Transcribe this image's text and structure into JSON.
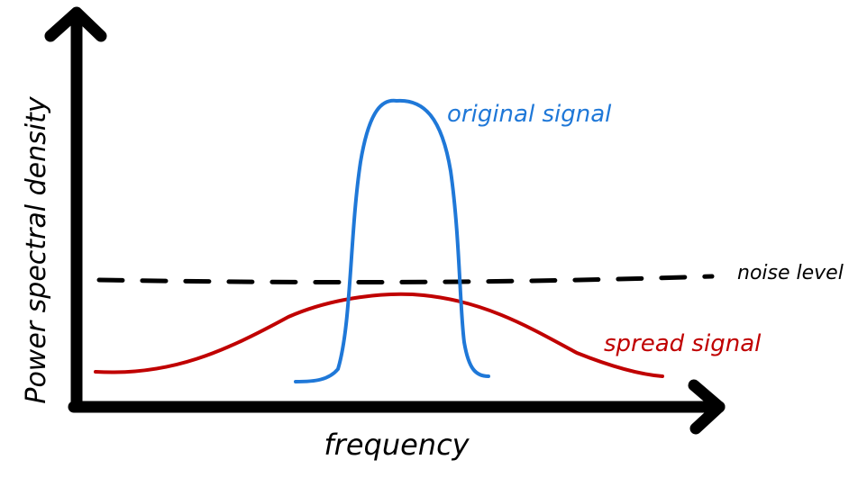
{
  "labels": {
    "y_axis": "Power spectral density",
    "x_axis": "frequency",
    "original": "original signal",
    "noise": "noise level",
    "spread": "spread signal"
  },
  "colors": {
    "axis": "#000000",
    "noise": "#000000",
    "original": "#1f78d8",
    "spread": "#c00000"
  }
}
